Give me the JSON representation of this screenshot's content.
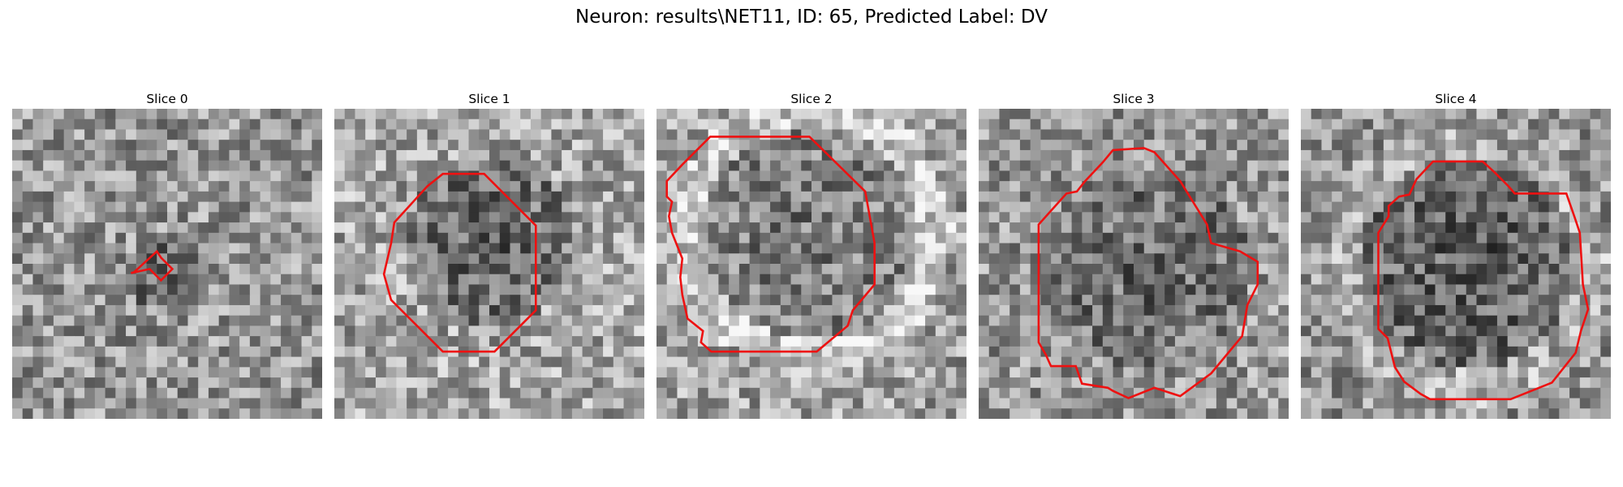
{
  "figure": {
    "title": "Neuron: results\\NET11, ID: 65, Predicted Label: DV"
  },
  "colors": {
    "contour": "#ee1111",
    "background": "#ffffff"
  },
  "panels": [
    {
      "title": "Slice 0"
    },
    {
      "title": "Slice 1"
    },
    {
      "title": "Slice 2"
    },
    {
      "title": "Slice 3"
    },
    {
      "title": "Slice 4"
    }
  ]
}
